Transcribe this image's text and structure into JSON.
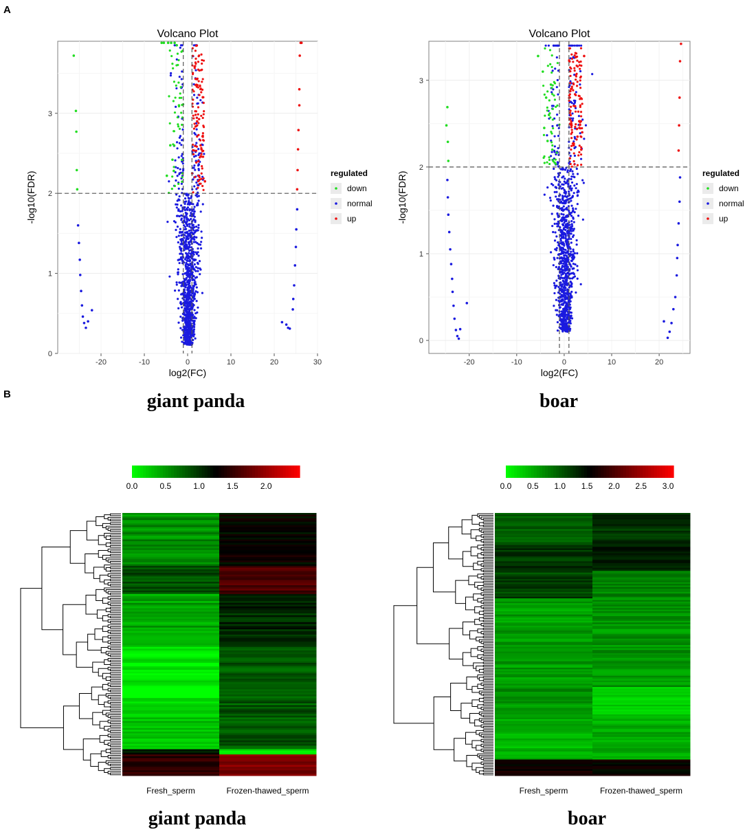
{
  "panels": {
    "a": "A",
    "b": "B"
  },
  "captions": {
    "volcano_left": "giant panda",
    "volcano_right": "boar",
    "heat_left": "giant panda",
    "heat_right": "boar"
  },
  "colors": {
    "down": "#22dd22",
    "normal": "#1a1adf",
    "up": "#ee1111",
    "heat_low": "#00ff00",
    "heat_mid": "#000000",
    "heat_high": "#ff0000"
  },
  "chart_data": [
    {
      "type": "scatter",
      "id": "volcano-giant-panda",
      "title": "Volcano Plot",
      "xlabel": "log2(FC)",
      "ylabel": "-log10(FDR)",
      "xlim": [
        -30,
        30
      ],
      "ylim": [
        0,
        3.9
      ],
      "xticks": [
        -20,
        -10,
        0,
        10,
        20,
        30
      ],
      "xticklabels": [
        "-20",
        "-10",
        "0",
        "10",
        "20",
        "30"
      ],
      "yticks": [
        0,
        1,
        2,
        3
      ],
      "yticklabels": [
        "0",
        "1",
        "2",
        "3"
      ],
      "hline": 2,
      "vlines": [
        -1,
        1
      ],
      "legend": {
        "title": "regulated",
        "items": [
          "down",
          "normal",
          "up"
        ],
        "placement": "right"
      },
      "series": [
        {
          "name": "down",
          "points": [
            [
              -26.3,
              3.72
            ],
            [
              -25.8,
              3.03
            ],
            [
              -25.7,
              2.77
            ],
            [
              -25.6,
              2.29
            ],
            [
              -25.5,
              2.05
            ],
            [
              -4,
              2.6
            ],
            [
              -3.5,
              2.42
            ],
            [
              -3.2,
              2.28
            ],
            [
              -4.8,
              2.22
            ],
            [
              -2,
              3.1
            ],
            [
              -5.5,
              3.88
            ],
            [
              -4.5,
              3.88
            ],
            [
              -3,
              3.88
            ],
            [
              -2.5,
              3.85
            ],
            [
              -6,
              3.88
            ],
            [
              -3.8,
              3.88
            ]
          ]
        },
        {
          "name": "up",
          "points": [
            [
              26.1,
              3.88
            ],
            [
              26.3,
              3.88
            ],
            [
              25.9,
              3.72
            ],
            [
              25.8,
              3.3
            ],
            [
              25.8,
              3.1
            ],
            [
              25.6,
              2.79
            ],
            [
              25.5,
              2.55
            ],
            [
              25.4,
              2.29
            ],
            [
              25.3,
              2.05
            ],
            [
              2.5,
              2.4
            ],
            [
              3.0,
              2.6
            ],
            [
              2.2,
              2.9
            ],
            [
              3.5,
              3.2
            ],
            [
              4.0,
              2.15
            ],
            [
              3.2,
              2.55
            ]
          ]
        },
        {
          "name": "normal",
          "points": [
            [
              -25.3,
              1.6
            ],
            [
              -25.1,
              1.38
            ],
            [
              -24.9,
              1.17
            ],
            [
              -24.8,
              0.98
            ],
            [
              -24.6,
              0.78
            ],
            [
              -24.4,
              0.6
            ],
            [
              -24.2,
              0.46
            ],
            [
              -23.9,
              0.38
            ],
            [
              -23.5,
              0.32
            ],
            [
              -23,
              0.4
            ],
            [
              -22.1,
              0.54
            ],
            [
              25.3,
              1.8
            ],
            [
              25.1,
              1.55
            ],
            [
              25,
              1.33
            ],
            [
              24.8,
              1.1
            ],
            [
              24.6,
              0.85
            ],
            [
              24.4,
              0.68
            ],
            [
              24.3,
              0.55
            ],
            [
              23.6,
              0.31
            ],
            [
              23.2,
              0.32
            ],
            [
              22.8,
              0.36
            ],
            [
              21.8,
              0.39
            ]
          ]
        }
      ]
    },
    {
      "type": "scatter",
      "id": "volcano-boar",
      "title": "Volcano Plot",
      "xlabel": "log2(FC)",
      "ylabel": "-log10(FDR)",
      "xlim": [
        -28.5,
        26.5
      ],
      "ylim": [
        -0.15,
        3.45
      ],
      "xticks": [
        -20,
        -10,
        0,
        10,
        20
      ],
      "xticklabels": [
        "-20",
        "-10",
        "0",
        "10",
        "20"
      ],
      "yticks": [
        0,
        1,
        2,
        3
      ],
      "yticklabels": [
        "0",
        "1",
        "2",
        "3"
      ],
      "hline": 2,
      "vlines": [
        -1,
        1
      ],
      "legend": {
        "title": "regulated",
        "items": [
          "down",
          "normal",
          "up"
        ],
        "placement": "right"
      },
      "series": [
        {
          "name": "down",
          "points": [
            [
              -24.6,
              2.69
            ],
            [
              -24.8,
              2.48
            ],
            [
              -24.5,
              2.29
            ],
            [
              -24.4,
              2.07
            ],
            [
              -5.5,
              3.28
            ],
            [
              -4.5,
              3.1
            ],
            [
              -3.8,
              2.8
            ],
            [
              -3.2,
              2.6
            ],
            [
              -4.2,
              2.45
            ],
            [
              -2.5,
              2.2
            ],
            [
              -3.5,
              2.3
            ],
            [
              -2.8,
              2.95
            ],
            [
              -2,
              2.05
            ]
          ]
        },
        {
          "name": "up",
          "points": [
            [
              24.6,
              3.42
            ],
            [
              24.4,
              3.22
            ],
            [
              24.3,
              2.8
            ],
            [
              24.2,
              2.48
            ],
            [
              24.1,
              2.19
            ],
            [
              1.5,
              2.5
            ],
            [
              2.3,
              2.7
            ],
            [
              3.2,
              2.45
            ],
            [
              2.8,
              2.35
            ],
            [
              3.8,
              2.4
            ],
            [
              1.2,
              2.1
            ],
            [
              2.0,
              2.25
            ],
            [
              3.6,
              2.2
            ],
            [
              4.2,
              3.28
            ]
          ]
        },
        {
          "name": "normal",
          "points": [
            [
              -24.6,
              1.85
            ],
            [
              -24.5,
              1.65
            ],
            [
              -24.4,
              1.45
            ],
            [
              -24.2,
              1.25
            ],
            [
              -24,
              1.05
            ],
            [
              -23.8,
              0.88
            ],
            [
              -23.6,
              0.71
            ],
            [
              -23.5,
              0.56
            ],
            [
              -23.3,
              0.4
            ],
            [
              -23.1,
              0.25
            ],
            [
              -22.8,
              0.12
            ],
            [
              -22.5,
              0.05
            ],
            [
              -22.2,
              0.02
            ],
            [
              -21.9,
              0.13
            ],
            [
              -20.5,
              0.43
            ],
            [
              24.4,
              1.88
            ],
            [
              24.3,
              1.6
            ],
            [
              24.1,
              1.35
            ],
            [
              23.9,
              1.1
            ],
            [
              23.8,
              0.95
            ],
            [
              23.7,
              0.75
            ],
            [
              23.4,
              0.5
            ],
            [
              23,
              0.36
            ],
            [
              22.6,
              0.2
            ],
            [
              22.2,
              0.1
            ],
            [
              21.8,
              0.03
            ],
            [
              21,
              0.22
            ]
          ]
        }
      ]
    },
    {
      "type": "heatmap",
      "id": "heatmap-giant-panda",
      "columns": [
        "Fresh_sperm",
        "Frozen-thawed_sperm"
      ],
      "colorbar": {
        "range": [
          0,
          2.5
        ],
        "ticks": [
          "0.0",
          "0.5",
          "1.0",
          "1.5",
          "2.0"
        ],
        "tick_values": [
          0,
          0.5,
          1,
          1.5,
          2
        ]
      },
      "blocks": [
        {
          "rows": 30,
          "values": [
            0.55,
            1.25
          ]
        },
        {
          "rows": 16,
          "values": [
            0.85,
            1.6
          ]
        },
        {
          "rows": 30,
          "values": [
            0.45,
            1.05
          ]
        },
        {
          "rows": 33,
          "values": [
            0.1,
            0.8
          ]
        },
        {
          "rows": 25,
          "values": [
            0.3,
            0.85
          ]
        },
        {
          "rows": 3,
          "values": [
            1.2,
            0.1
          ]
        },
        {
          "rows": 12,
          "values": [
            1.45,
            1.9
          ]
        }
      ]
    },
    {
      "type": "heatmap",
      "id": "heatmap-boar",
      "columns": [
        "Fresh_sperm",
        "Frozen-thawed_sperm"
      ],
      "colorbar": {
        "range": [
          0,
          3.1
        ],
        "ticks": [
          "0.0",
          "0.5",
          "1.0",
          "1.5",
          "2.0",
          "2.5",
          "3.0"
        ],
        "tick_values": [
          0,
          0.5,
          1,
          1.5,
          2,
          2.5,
          3
        ]
      },
      "blocks": [
        {
          "rows": 20,
          "values": [
            1.0,
            1.25
          ]
        },
        {
          "rows": 16,
          "values": [
            1.25,
            1.35
          ]
        },
        {
          "rows": 17,
          "values": [
            1.15,
            0.75
          ]
        },
        {
          "rows": 55,
          "values": [
            0.6,
            0.65
          ]
        },
        {
          "rows": 20,
          "values": [
            0.65,
            0.3
          ]
        },
        {
          "rows": 25,
          "values": [
            0.45,
            0.5
          ]
        },
        {
          "rows": 10,
          "values": [
            1.6,
            1.6
          ]
        }
      ]
    }
  ]
}
